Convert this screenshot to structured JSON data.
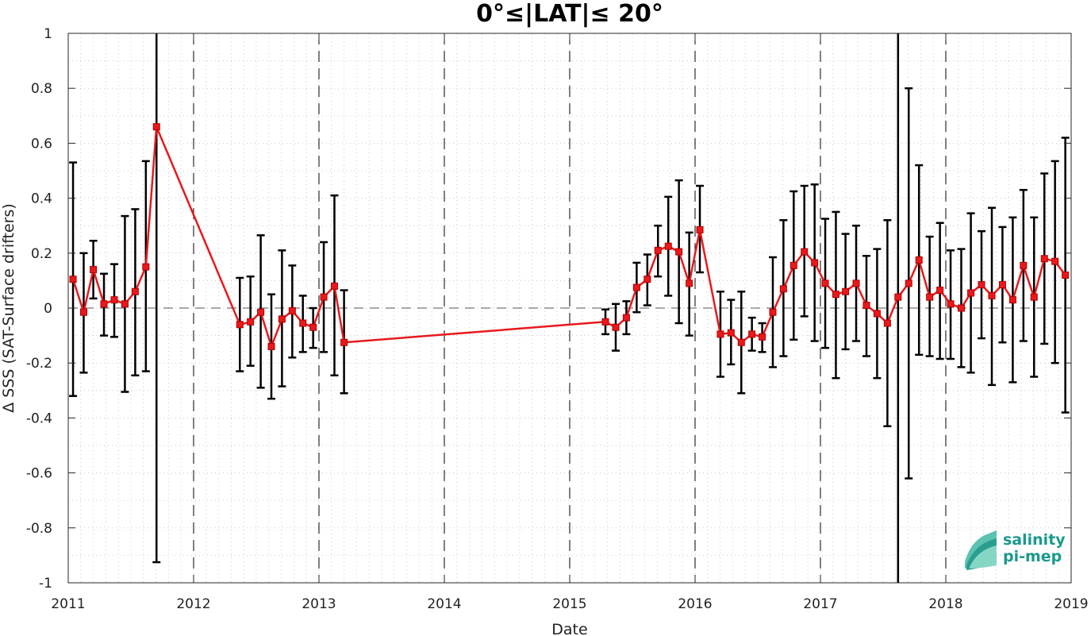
{
  "chart_data": {
    "type": "line",
    "title": "0°≤|LAT|≤ 20°",
    "xlabel": "Date",
    "ylabel": "Δ SSS (SAT-Surface drifters)",
    "xlim": [
      "2011-01-01",
      "2019-01-01"
    ],
    "ylim": [
      -1,
      1
    ],
    "x_tick_labels": [
      "2011",
      "2012",
      "2013",
      "2014",
      "2015",
      "2016",
      "2017",
      "2018",
      "2019"
    ],
    "y_tick_labels": [
      "-1",
      "-0.8",
      "-0.6",
      "-0.4",
      "-0.2",
      "0",
      "0.2",
      "0.4",
      "0.6",
      "0.8",
      "1"
    ],
    "y_ticks": [
      -1,
      -0.8,
      -0.6,
      -0.4,
      -0.2,
      0,
      0.2,
      0.4,
      0.6,
      0.8,
      1
    ],
    "grid": true,
    "zero_line": 0,
    "line_color": "#e8191c",
    "errorbar_color": "#000000",
    "series": [
      {
        "points": [
          {
            "x": "2011-01-15",
            "y": 0.105,
            "lo": -0.32,
            "hi": 0.53
          },
          {
            "x": "2011-02-15",
            "y": -0.015,
            "lo": -0.235,
            "hi": 0.2
          },
          {
            "x": "2011-03-15",
            "y": 0.14,
            "lo": 0.035,
            "hi": 0.245
          },
          {
            "x": "2011-04-15",
            "y": 0.015,
            "lo": -0.1,
            "hi": 0.125
          },
          {
            "x": "2011-05-15",
            "y": 0.03,
            "lo": -0.105,
            "hi": 0.16
          },
          {
            "x": "2011-06-15",
            "y": 0.015,
            "lo": -0.305,
            "hi": 0.335
          },
          {
            "x": "2011-07-15",
            "y": 0.06,
            "lo": -0.245,
            "hi": 0.36
          },
          {
            "x": "2011-08-15",
            "y": 0.15,
            "lo": -0.23,
            "hi": 0.535
          },
          {
            "x": "2011-09-15",
            "y": 0.66,
            "lo": -0.925,
            "hi": 1.0
          },
          {
            "x": "2012-05-15",
            "y": -0.06,
            "lo": -0.23,
            "hi": 0.11
          },
          {
            "x": "2012-06-15",
            "y": -0.05,
            "lo": -0.21,
            "hi": 0.115
          },
          {
            "x": "2012-07-15",
            "y": -0.015,
            "lo": -0.29,
            "hi": 0.265
          },
          {
            "x": "2012-08-15",
            "y": -0.14,
            "lo": -0.33,
            "hi": 0.05
          },
          {
            "x": "2012-09-15",
            "y": -0.04,
            "lo": -0.285,
            "hi": 0.21
          },
          {
            "x": "2012-10-15",
            "y": -0.01,
            "lo": -0.18,
            "hi": 0.155
          },
          {
            "x": "2012-11-15",
            "y": -0.055,
            "lo": -0.16,
            "hi": 0.045
          },
          {
            "x": "2012-12-15",
            "y": -0.07,
            "lo": -0.145,
            "hi": 0.0
          },
          {
            "x": "2013-01-15",
            "y": 0.04,
            "lo": -0.16,
            "hi": 0.24
          },
          {
            "x": "2013-02-15",
            "y": 0.08,
            "lo": -0.245,
            "hi": 0.41
          },
          {
            "x": "2013-03-15",
            "y": -0.125,
            "lo": -0.31,
            "hi": 0.065
          },
          {
            "x": "2015-04-15",
            "y": -0.05,
            "lo": -0.095,
            "hi": -0.005
          },
          {
            "x": "2015-05-15",
            "y": -0.07,
            "lo": -0.155,
            "hi": 0.015
          },
          {
            "x": "2015-06-15",
            "y": -0.035,
            "lo": -0.095,
            "hi": 0.025
          },
          {
            "x": "2015-07-15",
            "y": 0.075,
            "lo": -0.015,
            "hi": 0.165
          },
          {
            "x": "2015-08-15",
            "y": 0.105,
            "lo": 0.01,
            "hi": 0.195
          },
          {
            "x": "2015-09-15",
            "y": 0.21,
            "lo": 0.115,
            "hi": 0.3
          },
          {
            "x": "2015-10-15",
            "y": 0.225,
            "lo": 0.045,
            "hi": 0.405
          },
          {
            "x": "2015-11-15",
            "y": 0.205,
            "lo": -0.055,
            "hi": 0.465
          },
          {
            "x": "2015-12-15",
            "y": 0.09,
            "lo": -0.1,
            "hi": 0.275
          },
          {
            "x": "2016-01-15",
            "y": 0.285,
            "lo": 0.13,
            "hi": 0.445
          },
          {
            "x": "2016-03-15",
            "y": -0.095,
            "lo": -0.25,
            "hi": 0.06
          },
          {
            "x": "2016-04-15",
            "y": -0.09,
            "lo": -0.205,
            "hi": 0.03
          },
          {
            "x": "2016-05-15",
            "y": -0.125,
            "lo": -0.31,
            "hi": 0.06
          },
          {
            "x": "2016-06-15",
            "y": -0.095,
            "lo": -0.155,
            "hi": -0.035
          },
          {
            "x": "2016-07-15",
            "y": -0.105,
            "lo": -0.16,
            "hi": -0.055
          },
          {
            "x": "2016-08-15",
            "y": -0.015,
            "lo": -0.215,
            "hi": 0.185
          },
          {
            "x": "2016-09-15",
            "y": 0.07,
            "lo": -0.175,
            "hi": 0.32
          },
          {
            "x": "2016-10-15",
            "y": 0.155,
            "lo": -0.115,
            "hi": 0.425
          },
          {
            "x": "2016-11-15",
            "y": 0.205,
            "lo": -0.03,
            "hi": 0.445
          },
          {
            "x": "2016-12-15",
            "y": 0.165,
            "lo": -0.12,
            "hi": 0.45
          },
          {
            "x": "2017-01-15",
            "y": 0.09,
            "lo": -0.145,
            "hi": 0.325
          },
          {
            "x": "2017-02-15",
            "y": 0.05,
            "lo": -0.255,
            "hi": 0.35
          },
          {
            "x": "2017-03-15",
            "y": 0.06,
            "lo": -0.15,
            "hi": 0.27
          },
          {
            "x": "2017-04-15",
            "y": 0.09,
            "lo": -0.12,
            "hi": 0.3
          },
          {
            "x": "2017-05-15",
            "y": 0.01,
            "lo": -0.175,
            "hi": 0.19
          },
          {
            "x": "2017-06-15",
            "y": -0.02,
            "lo": -0.255,
            "hi": 0.215
          },
          {
            "x": "2017-07-15",
            "y": -0.055,
            "lo": -0.43,
            "hi": 0.32
          },
          {
            "x": "2017-08-15",
            "y": 0.04,
            "lo": -1.0,
            "hi": 1.0
          },
          {
            "x": "2017-09-15",
            "y": 0.09,
            "lo": -0.62,
            "hi": 0.8
          },
          {
            "x": "2017-10-15",
            "y": 0.175,
            "lo": -0.17,
            "hi": 0.52
          },
          {
            "x": "2017-11-15",
            "y": 0.04,
            "lo": -0.175,
            "hi": 0.26
          },
          {
            "x": "2017-12-15",
            "y": 0.065,
            "lo": -0.185,
            "hi": 0.31
          },
          {
            "x": "2018-01-15",
            "y": 0.015,
            "lo": -0.185,
            "hi": 0.21
          },
          {
            "x": "2018-02-15",
            "y": 0.0,
            "lo": -0.215,
            "hi": 0.215
          },
          {
            "x": "2018-03-15",
            "y": 0.055,
            "lo": -0.235,
            "hi": 0.345
          },
          {
            "x": "2018-04-15",
            "y": 0.085,
            "lo": -0.11,
            "hi": 0.28
          },
          {
            "x": "2018-05-15",
            "y": 0.045,
            "lo": -0.28,
            "hi": 0.365
          },
          {
            "x": "2018-06-15",
            "y": 0.085,
            "lo": -0.125,
            "hi": 0.295
          },
          {
            "x": "2018-07-15",
            "y": 0.03,
            "lo": -0.27,
            "hi": 0.33
          },
          {
            "x": "2018-08-15",
            "y": 0.155,
            "lo": -0.12,
            "hi": 0.43
          },
          {
            "x": "2018-09-15",
            "y": 0.04,
            "lo": -0.25,
            "hi": 0.33
          },
          {
            "x": "2018-10-15",
            "y": 0.18,
            "lo": -0.13,
            "hi": 0.49
          },
          {
            "x": "2018-11-15",
            "y": 0.17,
            "lo": -0.2,
            "hi": 0.535
          },
          {
            "x": "2018-12-15",
            "y": 0.12,
            "lo": -0.38,
            "hi": 0.62
          }
        ]
      }
    ]
  },
  "logo": {
    "line1": "salinity",
    "line2": "pi-mep",
    "color": "#1a9a8c"
  }
}
